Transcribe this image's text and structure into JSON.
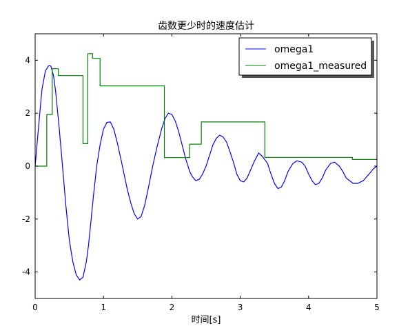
{
  "chart_data": {
    "type": "line",
    "title": "齿数更少时的速度估计",
    "xlabel": "时间[s]",
    "ylabel": "",
    "xlim": [
      0,
      5
    ],
    "ylim": [
      -5,
      5
    ],
    "xticks": [
      0,
      1,
      2,
      3,
      4,
      5
    ],
    "yticks": [
      -4,
      -2,
      0,
      2,
      4
    ],
    "grid": false,
    "legend_position": "top-right",
    "series": [
      {
        "name": "omega1",
        "color": "#0000ff",
        "style": "line",
        "x": [
          0,
          0.05,
          0.1,
          0.15,
          0.2,
          0.23,
          0.27,
          0.3,
          0.35,
          0.4,
          0.45,
          0.5,
          0.55,
          0.6,
          0.65,
          0.7,
          0.75,
          0.78,
          0.82,
          0.85,
          0.9,
          0.95,
          1.0,
          1.05,
          1.1,
          1.15,
          1.2,
          1.26,
          1.3,
          1.35,
          1.4,
          1.45,
          1.5,
          1.55,
          1.6,
          1.65,
          1.72,
          1.78,
          1.85,
          1.9,
          1.95,
          2.0,
          2.05,
          2.1,
          2.15,
          2.2,
          2.26,
          2.3,
          2.35,
          2.4,
          2.45,
          2.5,
          2.55,
          2.6,
          2.65,
          2.7,
          2.75,
          2.8,
          2.85,
          2.9,
          2.95,
          3.0,
          3.05,
          3.1,
          3.15,
          3.21,
          3.27,
          3.33,
          3.4,
          3.45,
          3.5,
          3.55,
          3.6,
          3.65,
          3.7,
          3.77,
          3.83,
          3.9,
          3.95,
          4.0,
          4.05,
          4.1,
          4.15,
          4.2,
          4.25,
          4.32,
          4.38,
          4.45,
          4.5,
          4.55,
          4.6,
          4.65,
          4.72,
          4.8,
          4.85,
          4.9,
          4.95,
          5.0
        ],
        "y": [
          0,
          1.5,
          2.9,
          3.6,
          3.8,
          3.78,
          3.4,
          2.8,
          1.5,
          0,
          -1.5,
          -2.8,
          -3.6,
          -4.1,
          -4.3,
          -4.2,
          -3.6,
          -3.0,
          -2.0,
          -1.2,
          0.0,
          0.8,
          1.4,
          1.65,
          1.67,
          1.4,
          0.9,
          0.2,
          -0.3,
          -0.9,
          -1.4,
          -1.8,
          -2.0,
          -1.9,
          -1.5,
          -0.9,
          0.0,
          0.7,
          1.4,
          1.8,
          2.0,
          1.95,
          1.7,
          1.3,
          0.8,
          0.3,
          -0.2,
          -0.4,
          -0.55,
          -0.5,
          -0.3,
          0.0,
          0.4,
          0.8,
          1.05,
          1.17,
          1.1,
          0.9,
          0.55,
          0.15,
          -0.3,
          -0.55,
          -0.6,
          -0.45,
          -0.15,
          0.2,
          0.5,
          0.35,
          0.1,
          -0.3,
          -0.65,
          -0.85,
          -0.8,
          -0.55,
          -0.2,
          0.1,
          0.2,
          0.15,
          0.0,
          -0.3,
          -0.55,
          -0.7,
          -0.65,
          -0.45,
          -0.15,
          0.1,
          0.15,
          0.0,
          -0.2,
          -0.45,
          -0.55,
          -0.65,
          -0.65,
          -0.55,
          -0.4,
          -0.25,
          -0.1,
          0.0
        ]
      },
      {
        "name": "omega1_measured",
        "color": "#008000",
        "style": "step",
        "x": [
          0,
          0.17,
          0.17,
          0.25,
          0.25,
          0.34,
          0.34,
          0.7,
          0.7,
          0.77,
          0.77,
          0.84,
          0.84,
          0.95,
          0.95,
          1.89,
          1.89,
          2.26,
          2.26,
          2.43,
          2.43,
          3.36,
          3.36,
          4.64,
          4.64,
          5.0
        ],
        "y": [
          0,
          0,
          1.95,
          1.95,
          3.68,
          3.68,
          3.42,
          3.42,
          0.85,
          0.85,
          4.25,
          4.25,
          4.07,
          4.07,
          3.03,
          3.03,
          0.32,
          0.32,
          0.83,
          0.83,
          1.67,
          1.67,
          0.33,
          0.33,
          0.25,
          0.25
        ]
      }
    ]
  }
}
